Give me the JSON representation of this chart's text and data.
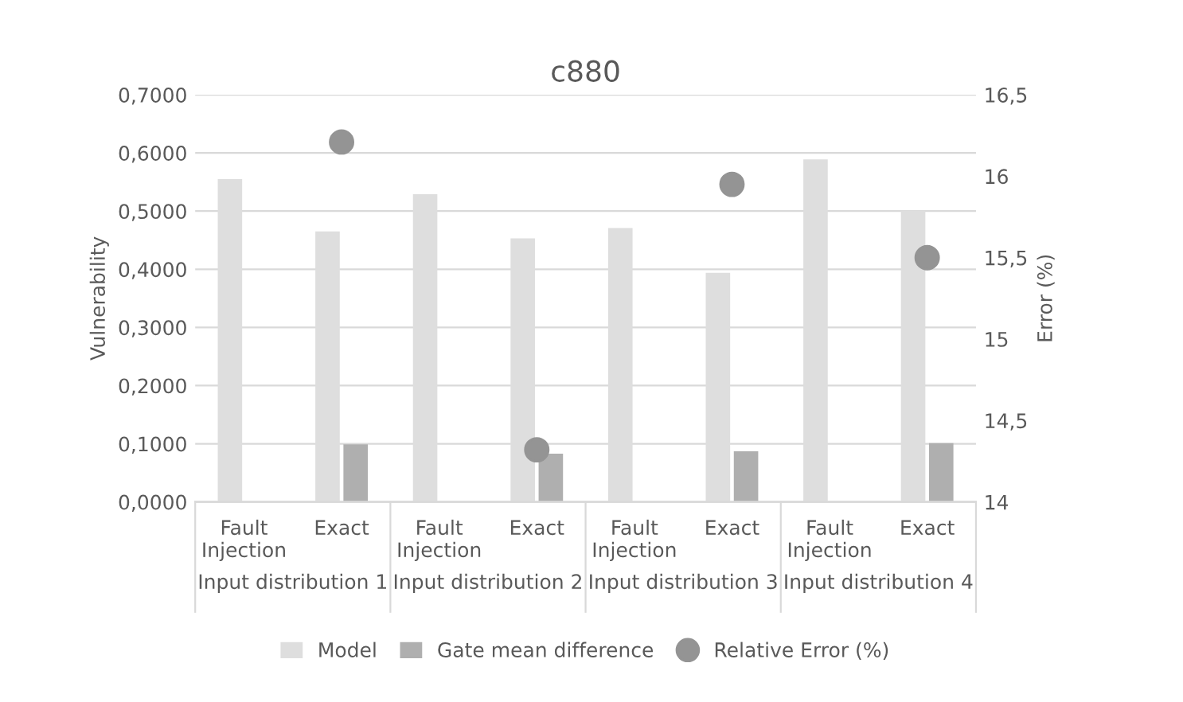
{
  "chart_data": {
    "type": "bar",
    "title": "c880",
    "ylabel": "Vulnerability",
    "y2label": "Error (%)",
    "categories": [
      "Fault\nInjection",
      "Exact",
      "Fault\nInjection",
      "Exact",
      "Fault\nInjection",
      "Exact",
      "Fault\nInjection",
      "Exact"
    ],
    "annotations": [
      "Input distribution 1",
      "Input distribution 2",
      "Input distribution 3",
      "Input distribution 4"
    ],
    "series": [
      {
        "name": "Model",
        "color": "#dedede",
        "values": [
          0.555,
          0.465,
          0.529,
          0.453,
          0.471,
          0.394,
          0.589,
          0.501
        ]
      },
      {
        "name": "Gate mean difference",
        "color": "#afafaf",
        "values": [
          null,
          0.099,
          null,
          0.083,
          null,
          0.087,
          null,
          0.101
        ]
      },
      {
        "name": "Relative Error (%)",
        "type": "scatter",
        "axis": "y2",
        "marker": "circle",
        "color": "#949494",
        "values": [
          null,
          16.21,
          null,
          14.32,
          null,
          15.95,
          null,
          15.5
        ]
      }
    ],
    "ylim": [
      0,
      0.7
    ],
    "yticks": [
      {
        "value": 0,
        "label": "0,0000"
      },
      {
        "value": 0.1,
        "label": "0,1000"
      },
      {
        "value": 0.2,
        "label": "0,2000"
      },
      {
        "value": 0.3,
        "label": "0,3000"
      },
      {
        "value": 0.4,
        "label": "0,4000"
      },
      {
        "value": 0.5,
        "label": "0,5000"
      },
      {
        "value": 0.6,
        "label": "0,6000"
      },
      {
        "value": 0.7,
        "label": "0,7000"
      }
    ],
    "y2lim": [
      14,
      16.5
    ],
    "y2ticks": [
      14,
      {
        "value": 14.5,
        "label": "14,5"
      },
      15,
      {
        "value": 15.5,
        "label": "15,5"
      },
      16,
      {
        "value": 16.5,
        "label": "16,5"
      }
    ],
    "grid": "y",
    "legend": "bottom"
  }
}
